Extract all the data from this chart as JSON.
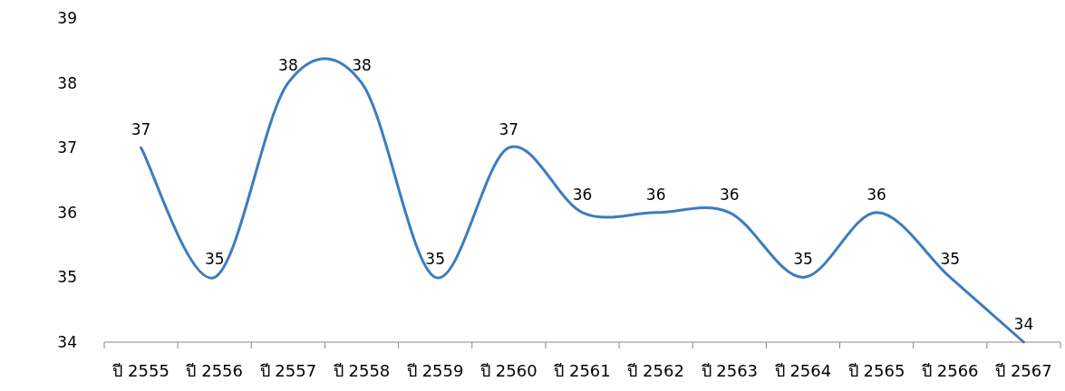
{
  "chart_data": {
    "type": "line",
    "categories": [
      "ปี 2555",
      "ปี 2556",
      "ปี 2557",
      "ปี 2558",
      "ปี 2559",
      "ปี 2560",
      "ปี 2561",
      "ปี 2562",
      "ปี 2563",
      "ปี 2564",
      "ปี 2565",
      "ปี 2566",
      "ปี 2567"
    ],
    "series": [
      {
        "color": "#3b7dbf",
        "values": [
          37,
          35,
          38,
          38,
          35,
          37,
          36,
          36,
          36,
          35,
          36,
          35,
          34
        ]
      }
    ],
    "ylim": [
      34,
      39
    ],
    "yticks": [
      34,
      35,
      36,
      37,
      38,
      39
    ],
    "data_labels": true
  }
}
